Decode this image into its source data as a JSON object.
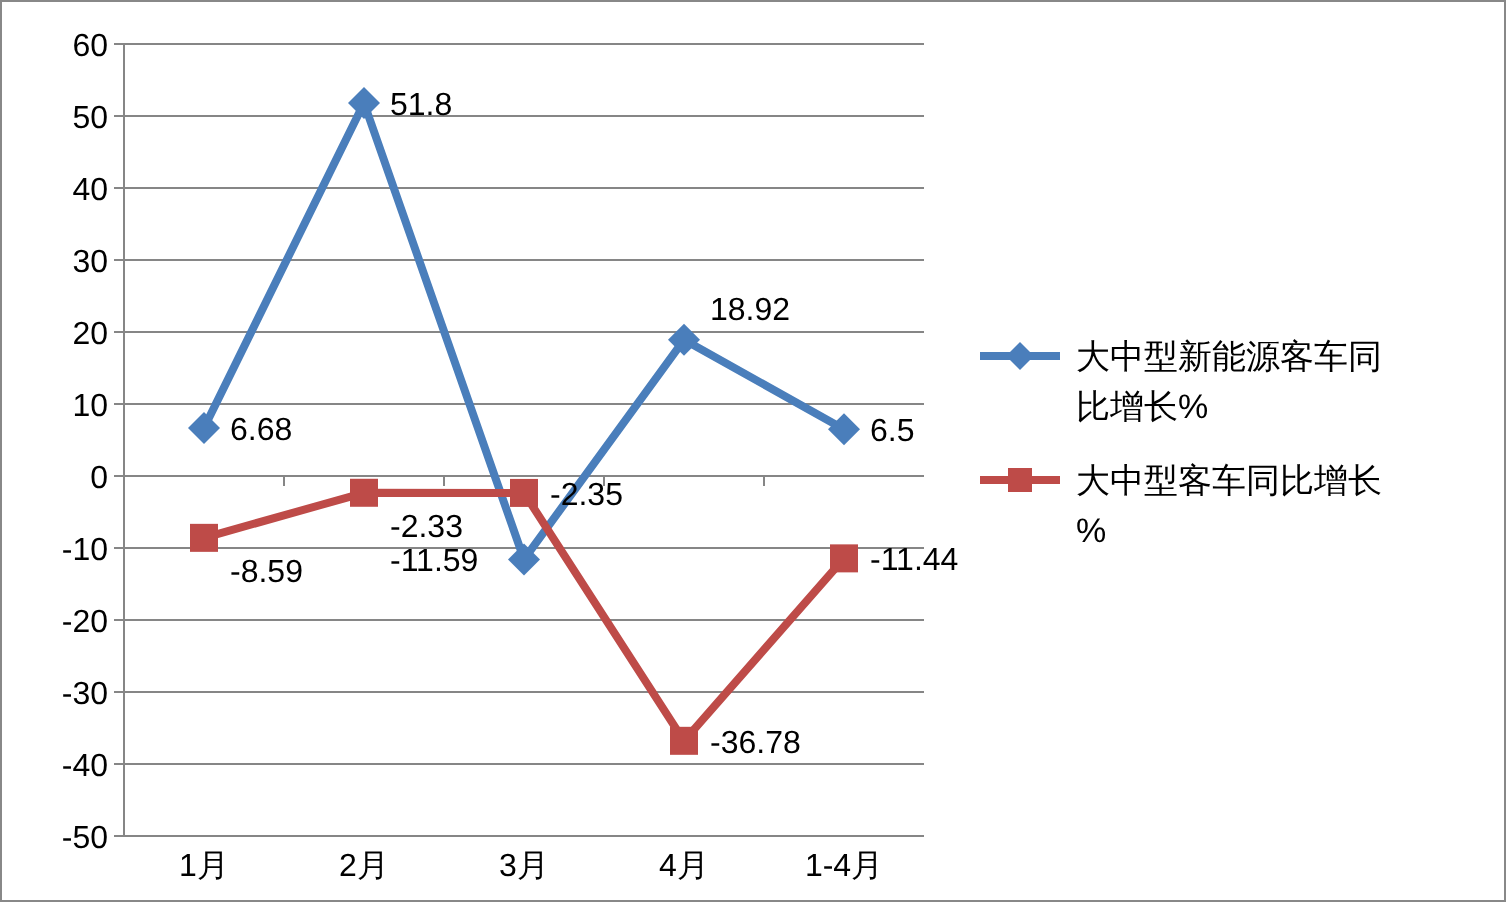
{
  "chart_data": {
    "type": "line",
    "categories": [
      "1月",
      "2月",
      "3月",
      "4月",
      "1-4月"
    ],
    "series": [
      {
        "name": "大中型新能源客车同比增长%",
        "color": "#4a7ebb",
        "marker": "diamond",
        "values": [
          6.68,
          51.8,
          -11.59,
          18.92,
          6.5
        ]
      },
      {
        "name": "大中型客车同比增长%",
        "color": "#be4b48",
        "marker": "square",
        "values": [
          -8.59,
          -2.33,
          -2.35,
          -36.78,
          -11.44
        ]
      }
    ],
    "ylim": [
      -50,
      60
    ],
    "yticks": [
      -50,
      -40,
      -30,
      -20,
      -10,
      0,
      10,
      20,
      30,
      40,
      50,
      60
    ],
    "grid": "y",
    "legend": "right",
    "data_labels": true,
    "line_style": "solid"
  }
}
